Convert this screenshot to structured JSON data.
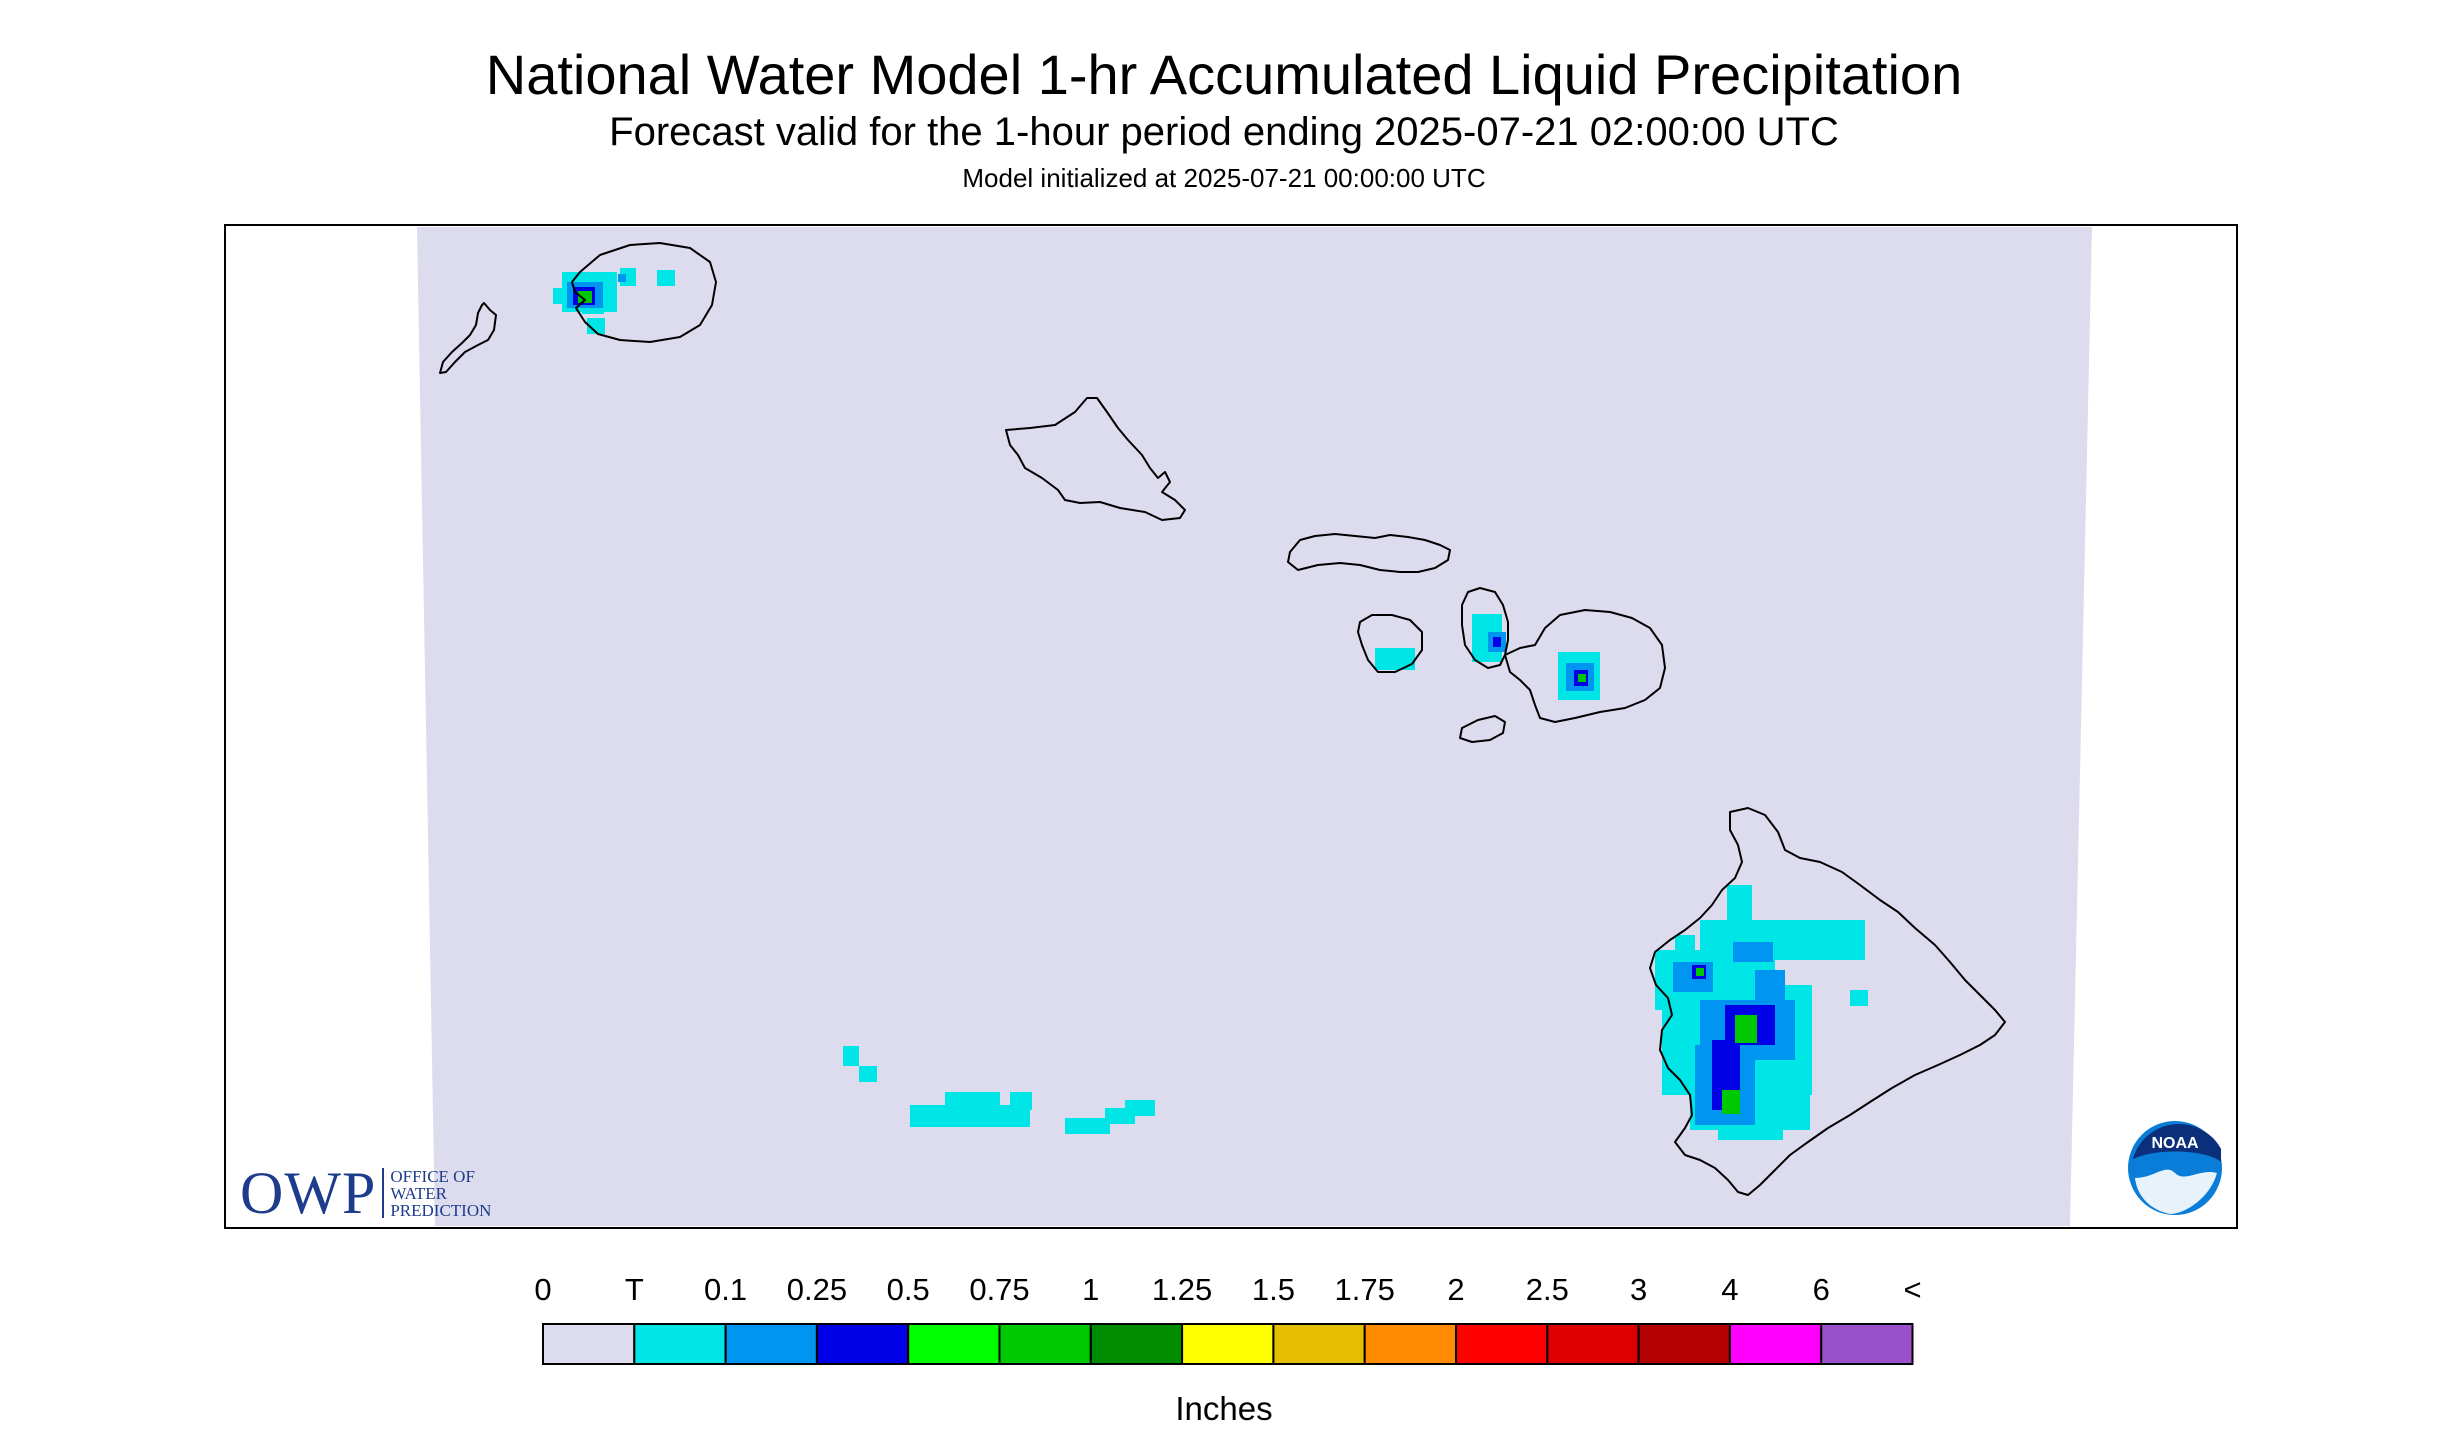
{
  "titles": {
    "main": "National Water Model 1-hr Accumulated Liquid Precipitation",
    "subtitle": "Forecast valid for the 1-hour period ending 2025-07-21 02:00:00 UTC",
    "init": "Model initialized at 2025-07-21 00:00:00 UTC"
  },
  "logos": {
    "owp_letters": "OWP",
    "owp_line1": "OFFICE OF",
    "owp_line2": "WATER",
    "owp_line3": "PREDICTION",
    "noaa": "NOAA"
  },
  "legend": {
    "units": "Inches",
    "labels": [
      "0",
      "T",
      "0.1",
      "0.25",
      "0.5",
      "0.75",
      "1",
      "1.25",
      "1.5",
      "1.75",
      "2",
      "2.5",
      "3",
      "4",
      "6",
      "<"
    ],
    "colors": [
      "#dcdcee",
      "#00e5e5",
      "#0095f0",
      "#0000e6",
      "#00ff00",
      "#00c800",
      "#008c00",
      "#ffff00",
      "#e6c000",
      "#ff8c00",
      "#ff0000",
      "#dc0000",
      "#b40000",
      "#ff00ff",
      "#9a50c8"
    ]
  },
  "colors": {
    "map_background": "#dcdcee",
    "coastline": "#000000"
  }
}
